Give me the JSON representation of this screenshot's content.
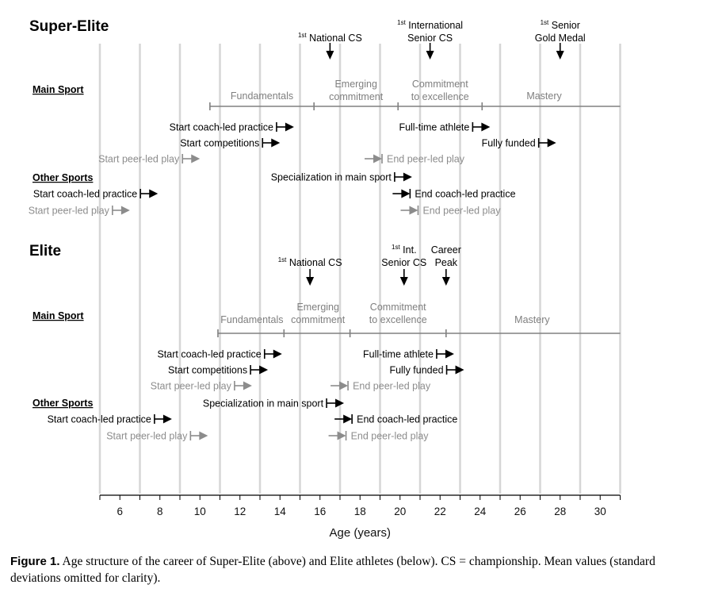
{
  "chart_data": {
    "type": "timeline",
    "xlabel": "Age (years)",
    "xlim": [
      5,
      31
    ],
    "x_ticks": [
      "6",
      "8",
      "10",
      "12",
      "14",
      "16",
      "18",
      "20",
      "22",
      "24",
      "26",
      "28",
      "30"
    ],
    "panels": [
      {
        "title": "Super-Elite",
        "section_main": "Main Sport",
        "section_other": "Other Sports",
        "milestones": [
          {
            "label": "National CS",
            "sup": "1st",
            "age": 16.5
          },
          {
            "label": "International",
            "sup": "1st",
            "label2": "Senior CS",
            "age": 21.5
          },
          {
            "label": "Senior",
            "sup": "1st",
            "label2": "Gold Medal",
            "age": 28.0
          }
        ],
        "phase_range": [
          10.5,
          31
        ],
        "phase_boundaries": [
          10.5,
          15.7,
          19.9,
          24.1
        ],
        "phases": [
          {
            "name": "Fundamentals",
            "age": 13.1
          },
          {
            "name": "Emerging",
            "name2": "commitment",
            "age": 17.8
          },
          {
            "name": "Commitment",
            "name2": "to excellence",
            "age": 22.0
          },
          {
            "name": "Mastery",
            "age": 27.2
          }
        ],
        "events": [
          {
            "label": "Start coach-led practice",
            "age": 14.7,
            "kind": "start",
            "tone": "dark"
          },
          {
            "label": "Start competitions",
            "age": 14.0,
            "kind": "start",
            "tone": "dark"
          },
          {
            "label": "Start peer-led play",
            "age": 10.0,
            "kind": "start",
            "tone": "grey"
          },
          {
            "label": "Full-time athlete",
            "age": 24.5,
            "kind": "start",
            "tone": "dark"
          },
          {
            "label": "Fully funded",
            "age": 27.8,
            "kind": "start",
            "tone": "dark"
          },
          {
            "label": "End peer-led play",
            "age": 19.1,
            "kind": "end",
            "tone": "grey"
          },
          {
            "label": "Specialization in main sport",
            "age": 20.6,
            "kind": "start",
            "tone": "dark"
          },
          {
            "label": "Start coach-led practice",
            "age": 7.9,
            "kind": "start",
            "tone": "dark"
          },
          {
            "label": "End coach-led practice",
            "age": 20.5,
            "kind": "end",
            "tone": "dark"
          },
          {
            "label": "Start peer-led play",
            "age": 6.5,
            "kind": "start",
            "tone": "grey"
          },
          {
            "label": "End peer-led play",
            "age": 20.9,
            "kind": "end",
            "tone": "grey"
          }
        ]
      },
      {
        "title": "Elite",
        "section_main": "Main Sport",
        "section_other": "Other Sports",
        "milestones": [
          {
            "label": "National CS",
            "sup": "1st",
            "age": 15.5
          },
          {
            "label": "Int.",
            "sup": "1st",
            "label2": "Senior CS",
            "age": 20.2
          },
          {
            "label": "Career",
            "label2": "Peak",
            "age": 22.3
          }
        ],
        "phase_range": [
          10.9,
          31
        ],
        "phase_boundaries": [
          10.9,
          14.2,
          17.5,
          22.3
        ],
        "phases": [
          {
            "name": "Fundamentals",
            "age": 12.6
          },
          {
            "name": "Emerging",
            "name2": "commitment",
            "age": 15.9
          },
          {
            "name": "Commitment",
            "name2": "to excellence",
            "age": 19.9
          },
          {
            "name": "Mastery",
            "age": 26.6
          }
        ],
        "events": [
          {
            "label": "Start coach-led practice",
            "age": 14.1,
            "kind": "start",
            "tone": "dark"
          },
          {
            "label": "Start competitions",
            "age": 13.4,
            "kind": "start",
            "tone": "dark"
          },
          {
            "label": "Start peer-led play",
            "age": 12.6,
            "kind": "start",
            "tone": "grey"
          },
          {
            "label": "Full-time athlete",
            "age": 22.7,
            "kind": "start",
            "tone": "dark"
          },
          {
            "label": "Fully funded",
            "age": 23.2,
            "kind": "start",
            "tone": "dark"
          },
          {
            "label": "End peer-led play",
            "age": 17.4,
            "kind": "end",
            "tone": "grey"
          },
          {
            "label": "Specialization in main sport",
            "age": 17.2,
            "kind": "start",
            "tone": "dark"
          },
          {
            "label": "Start coach-led practice",
            "age": 8.6,
            "kind": "start",
            "tone": "dark"
          },
          {
            "label": "End coach-led practice",
            "age": 17.6,
            "kind": "end",
            "tone": "dark"
          },
          {
            "label": "Start peer-led play",
            "age": 10.4,
            "kind": "start",
            "tone": "grey"
          },
          {
            "label": "End peer-led play",
            "age": 17.3,
            "kind": "end",
            "tone": "grey"
          }
        ]
      }
    ]
  },
  "caption": {
    "label": "Figure 1.",
    "text": " Age structure of the career of Super-Elite (above) and Elite athletes (below). CS = championship. Mean values (standard deviations omitted for clarity)."
  },
  "colors": {
    "dark": "#000000",
    "grey": "#8c8c8c",
    "gridline": "#d6d6d6",
    "phase_text": "#7f7f7f"
  }
}
